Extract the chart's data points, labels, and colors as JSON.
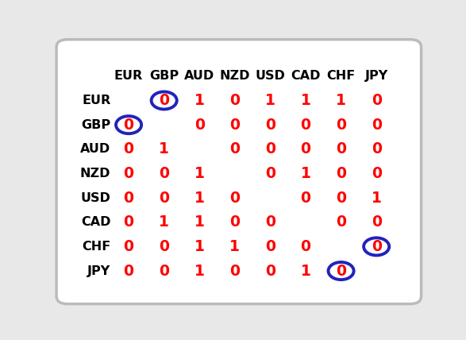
{
  "currencies": [
    "EUR",
    "GBP",
    "AUD",
    "NZD",
    "USD",
    "CAD",
    "CHF",
    "JPY"
  ],
  "matrix": [
    [
      null,
      "0c",
      "1",
      "0",
      "1",
      "1",
      "1",
      "0"
    ],
    [
      "0c",
      null,
      "0",
      "0",
      "0",
      "0",
      "0",
      "0"
    ],
    [
      "0",
      "1",
      null,
      "0",
      "0",
      "0",
      "0",
      "0"
    ],
    [
      "0",
      "0",
      "1",
      null,
      "0",
      "1",
      "0",
      "0"
    ],
    [
      "0",
      "0",
      "1",
      "0",
      null,
      "0",
      "0",
      "1"
    ],
    [
      "0",
      "1",
      "1",
      "0",
      "0",
      null,
      "0",
      "0"
    ],
    [
      "0",
      "0",
      "1",
      "1",
      "0",
      "0",
      null,
      "0c"
    ],
    [
      "0",
      "0",
      "1",
      "0",
      "0",
      "1",
      "0c",
      null
    ]
  ],
  "circled_cells": [
    [
      0,
      1
    ],
    [
      1,
      0
    ],
    [
      6,
      7
    ],
    [
      7,
      6
    ]
  ],
  "text_color": "#FF0000",
  "header_color": "#000000",
  "circle_color": "#2222BB",
  "bg_color": "#E8E8E8",
  "border_color": "#BBBBBB",
  "header_fontsize": 11.5,
  "cell_fontsize": 13.5,
  "row_label_fontsize": 11.5,
  "figsize": [
    5.87,
    4.28
  ],
  "dpi": 100
}
